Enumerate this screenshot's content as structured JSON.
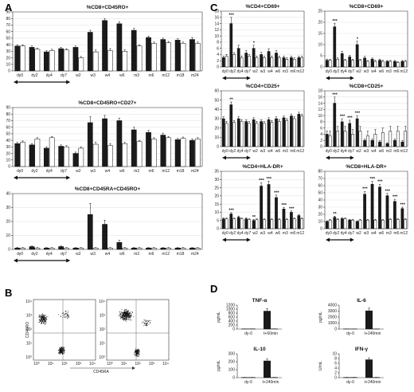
{
  "panel_labels": {
    "a": "A",
    "b": "B",
    "c": "C",
    "d": "D"
  },
  "panel_b": {
    "ylabel": "CD45RO",
    "xlabel": "CD45RA",
    "ticks": [
      "10⁰",
      "10¹",
      "10²",
      "10³",
      "10⁴"
    ]
  },
  "chart_data": [
    {
      "type": "bar",
      "panel": "A",
      "title": "%CD8+CD45RO+",
      "categories": [
        "dy0",
        "dy2",
        "dy4",
        "dy7",
        "w2",
        "w3",
        "w4",
        "w6",
        "m3",
        "m6",
        "m12",
        "m18",
        "m24"
      ],
      "ylim": [
        0,
        90
      ],
      "yticks": [
        0,
        10,
        20,
        30,
        40,
        50,
        60,
        70,
        80,
        90
      ],
      "series": [
        {
          "fill": "#1a1a1a",
          "values": [
            38,
            36,
            29,
            34,
            36,
            59,
            77,
            72,
            62,
            51,
            48,
            47,
            48
          ],
          "err": [
            2,
            2,
            2,
            2,
            2,
            3,
            3,
            3,
            3,
            2,
            2,
            2,
            3
          ]
        },
        {
          "fill": "#ffffff",
          "values": [
            38,
            33,
            31,
            32,
            20,
            29,
            31,
            30,
            38,
            42,
            43,
            42,
            42
          ],
          "err": [
            2,
            2,
            2,
            2,
            2,
            3,
            3,
            2,
            2,
            2,
            2,
            2,
            2
          ]
        }
      ],
      "stars": [],
      "period": [
        "dy0",
        "dy7"
      ]
    },
    {
      "type": "bar",
      "panel": "A",
      "title": "%CD8+CD45RO+CD27+",
      "categories": [
        "dy0",
        "dy2",
        "dy4",
        "dy7",
        "w2",
        "w3",
        "w4",
        "w6",
        "m3",
        "m6",
        "m12",
        "m18",
        "m24"
      ],
      "ylim": [
        0,
        90
      ],
      "yticks": [
        0,
        10,
        20,
        30,
        40,
        50,
        60,
        70,
        80,
        90
      ],
      "series": [
        {
          "fill": "#1a1a1a",
          "values": [
            35,
            33,
            28,
            31,
            20,
            67,
            73,
            70,
            56,
            52,
            48,
            41,
            40
          ],
          "err": [
            2,
            2,
            2,
            2,
            2,
            9,
            5,
            4,
            4,
            3,
            3,
            2,
            2
          ]
        },
        {
          "fill": "#ffffff",
          "values": [
            37,
            42,
            44,
            30,
            28,
            34,
            32,
            35,
            38,
            42,
            44,
            43,
            42
          ],
          "err": [
            2,
            2,
            2,
            2,
            2,
            3,
            3,
            2,
            2,
            2,
            2,
            2,
            2
          ]
        }
      ],
      "stars": [],
      "period": [
        "dy0",
        "dy7"
      ]
    },
    {
      "type": "bar",
      "panel": "A",
      "title": "%CD8+CD45RA+CD45RO+",
      "categories": [
        "dy0",
        "dy2",
        "dy4",
        "dy7",
        "w2",
        "w3",
        "w4",
        "w6",
        "m3",
        "m6",
        "m12",
        "m18",
        "m24"
      ],
      "ylim": [
        0,
        40
      ],
      "yticks": [
        0,
        10,
        20,
        30,
        40
      ],
      "series": [
        {
          "fill": "#1a1a1a",
          "values": [
            1,
            2,
            1,
            2,
            1,
            25,
            18,
            5,
            1,
            1,
            1,
            1,
            1
          ],
          "err": [
            0.3,
            0.4,
            0.3,
            0.4,
            0.3,
            8,
            3,
            1.5,
            0.3,
            0.3,
            0.3,
            0.3,
            0.3
          ]
        },
        {
          "fill": "#ffffff",
          "values": [
            1,
            1,
            1,
            1,
            1,
            1,
            1,
            1,
            1,
            1,
            1,
            1,
            1
          ],
          "err": [
            0.3,
            0.3,
            0.3,
            0.3,
            0.3,
            0.3,
            0.3,
            0.3,
            0.3,
            0.3,
            0.3,
            0.3,
            0.3
          ]
        }
      ],
      "stars": [],
      "period": [
        "dy0",
        "dy7"
      ]
    },
    {
      "type": "bar",
      "panel": "C",
      "title": "%CD4+CD69+",
      "categories": [
        "dy0",
        "dy2",
        "dy4",
        "dy7",
        "w2",
        "w3",
        "w4",
        "w6",
        "m3",
        "m6",
        "m12"
      ],
      "ylim": [
        0,
        18
      ],
      "yticks": [
        0,
        2,
        4,
        6,
        8,
        10,
        12,
        14,
        16,
        18
      ],
      "series": [
        {
          "fill": "#1a1a1a",
          "values": [
            3,
            14,
            6,
            4.5,
            6,
            4,
            5,
            4.5,
            3,
            3,
            3
          ],
          "err": [
            0.5,
            2,
            1,
            0.8,
            1,
            0.7,
            0.8,
            0.8,
            0.5,
            0.5,
            0.5
          ]
        },
        {
          "fill": "#ffffff",
          "values": [
            3.5,
            4,
            3,
            3.5,
            3,
            3,
            3,
            3,
            2.5,
            2.5,
            3
          ],
          "err": [
            0.5,
            0.6,
            0.5,
            0.5,
            0.5,
            0.5,
            0.5,
            0.5,
            0.4,
            0.4,
            0.5
          ]
        }
      ],
      "stars": [
        {
          "cat": "dy2",
          "label": "***"
        },
        {
          "cat": "w2",
          "label": "*"
        }
      ],
      "period": [
        "dy0",
        "dy7"
      ]
    },
    {
      "type": "bar",
      "panel": "C",
      "title": "%CD8+CD69+",
      "categories": [
        "dy0",
        "dy2",
        "dy4",
        "dy7",
        "w2",
        "w3",
        "w4",
        "w6",
        "m3",
        "m6",
        "m12"
      ],
      "ylim": [
        0,
        25
      ],
      "yticks": [
        0,
        5,
        10,
        15,
        20,
        25
      ],
      "series": [
        {
          "fill": "#1a1a1a",
          "values": [
            3,
            18,
            6,
            4.5,
            10,
            4,
            3.5,
            3,
            2.5,
            2.5,
            2.5
          ],
          "err": [
            0.5,
            1.5,
            1,
            0.7,
            1.5,
            0.7,
            0.5,
            0.5,
            0.4,
            0.4,
            0.4
          ]
        },
        {
          "fill": "#ffffff",
          "values": [
            3,
            3.5,
            3,
            3,
            3,
            2.5,
            2.5,
            2.5,
            2.5,
            2,
            2.5
          ],
          "err": [
            0.4,
            0.5,
            0.4,
            0.4,
            0.4,
            0.4,
            0.4,
            0.4,
            0.4,
            0.4,
            0.4
          ]
        }
      ],
      "stars": [
        {
          "cat": "dy2",
          "label": "***"
        },
        {
          "cat": "w2",
          "label": "*"
        }
      ],
      "period": [
        "dy0",
        "dy7"
      ]
    },
    {
      "type": "bar",
      "panel": "C",
      "title": "%CD4+CD25+",
      "categories": [
        "dy0",
        "dy2",
        "dy4",
        "dy7",
        "w2",
        "w3",
        "w4",
        "w6",
        "m3",
        "m6",
        "m12"
      ],
      "ylim": [
        0,
        60
      ],
      "yticks": [
        0,
        10,
        20,
        30,
        40,
        50,
        60
      ],
      "series": [
        {
          "fill": "#1a1a1a",
          "values": [
            30,
            45,
            30,
            27,
            29,
            27,
            29,
            30,
            31,
            33,
            35
          ],
          "err": [
            2,
            3,
            2,
            2,
            2,
            2,
            2,
            2,
            2,
            2,
            2
          ]
        },
        {
          "fill": "#ffffff",
          "values": [
            25,
            26,
            27,
            25,
            25,
            25,
            26,
            27,
            28,
            30,
            33
          ],
          "err": [
            2,
            2,
            2,
            2,
            2,
            2,
            2,
            2,
            2,
            2,
            2
          ]
        }
      ],
      "stars": [
        {
          "cat": "dy2",
          "label": "**"
        }
      ],
      "period": [
        "dy0",
        "dy7"
      ]
    },
    {
      "type": "bar",
      "panel": "C",
      "title": "%CD8+CD25+",
      "categories": [
        "dy0",
        "dy2",
        "dy4",
        "dy7",
        "w2",
        "w3",
        "w4",
        "w6",
        "m3",
        "m6",
        "m12"
      ],
      "ylim": [
        0,
        18
      ],
      "yticks": [
        0,
        2,
        4,
        6,
        8,
        10,
        12,
        14,
        16,
        18
      ],
      "series": [
        {
          "fill": "#1a1a1a",
          "values": [
            4,
            14,
            8,
            7.5,
            9,
            2,
            2,
            1.5,
            1,
            2,
            1.5
          ],
          "err": [
            1,
            2,
            1,
            1,
            1,
            0.5,
            0.5,
            0.4,
            0.3,
            0.5,
            0.4
          ]
        },
        {
          "fill": "#ffffff",
          "values": [
            3.5,
            5,
            5,
            4,
            5,
            3.5,
            4,
            4.5,
            5,
            5,
            5
          ],
          "err": [
            1.5,
            1.5,
            1.5,
            1.5,
            1.5,
            1.5,
            1.5,
            1.5,
            1.5,
            1.5,
            1.5
          ]
        }
      ],
      "stars": [
        {
          "cat": "dy2",
          "label": "***"
        },
        {
          "cat": "dy4",
          "label": "***"
        },
        {
          "cat": "dy7",
          "label": "***"
        },
        {
          "cat": "w2",
          "label": "***"
        }
      ],
      "period": [
        "dy0",
        "dy7"
      ]
    },
    {
      "type": "bar",
      "panel": "C",
      "title": "%CD4+HLA-DR+",
      "categories": [
        "dy0",
        "dy2",
        "dy4",
        "dy7",
        "w2",
        "w3",
        "w4",
        "w6",
        "m3",
        "m6",
        "m12"
      ],
      "ylim": [
        0,
        35
      ],
      "yticks": [
        0,
        5,
        10,
        15,
        20,
        25,
        30,
        35
      ],
      "series": [
        {
          "fill": "#1a1a1a",
          "values": [
            6,
            9,
            7,
            6,
            5,
            26,
            27,
            19,
            12,
            10,
            8
          ],
          "err": [
            0.6,
            0.8,
            0.7,
            0.6,
            0.6,
            2,
            2,
            1.5,
            1,
            0.8,
            0.7
          ]
        },
        {
          "fill": "#ffffff",
          "values": [
            6,
            6,
            6,
            5.5,
            5.5,
            5.5,
            5.5,
            5.5,
            5.5,
            6,
            6
          ],
          "err": [
            0.5,
            0.5,
            0.5,
            0.5,
            0.5,
            0.5,
            0.5,
            0.5,
            0.5,
            0.5,
            0.5
          ]
        }
      ],
      "stars": [
        {
          "cat": "dy2",
          "label": "***"
        },
        {
          "cat": "w2",
          "label": "**"
        },
        {
          "cat": "w3",
          "label": "***"
        },
        {
          "cat": "w4",
          "label": "***"
        },
        {
          "cat": "w6",
          "label": "***"
        },
        {
          "cat": "m3",
          "label": "***"
        },
        {
          "cat": "m6",
          "label": "***"
        }
      ],
      "period": [
        "dy0",
        "dy7"
      ]
    },
    {
      "type": "bar",
      "panel": "C",
      "title": "%CD8+HLA-DR+",
      "categories": [
        "dy0",
        "dy2",
        "dy4",
        "dy7",
        "w2",
        "w3",
        "w4",
        "w6",
        "m3",
        "m6",
        "m12"
      ],
      "ylim": [
        0,
        80
      ],
      "yticks": [
        0,
        10,
        20,
        30,
        40,
        50,
        60,
        70,
        80
      ],
      "series": [
        {
          "fill": "#1a1a1a",
          "values": [
            10,
            16,
            14,
            12,
            10,
            48,
            62,
            58,
            46,
            38,
            28
          ],
          "err": [
            1,
            1.5,
            1.5,
            1,
            1,
            4,
            4,
            4,
            3,
            3,
            2
          ]
        },
        {
          "fill": "#ffffff",
          "values": [
            12,
            13,
            14,
            12,
            12,
            12,
            12,
            12,
            13,
            13,
            13
          ],
          "err": [
            1,
            1,
            1,
            1,
            1,
            1,
            1,
            1,
            1,
            1,
            1
          ]
        }
      ],
      "stars": [
        {
          "cat": "dy2",
          "label": "**"
        },
        {
          "cat": "w3",
          "label": "***"
        },
        {
          "cat": "w4",
          "label": "***"
        },
        {
          "cat": "w6",
          "label": "***"
        },
        {
          "cat": "m3",
          "label": "***"
        },
        {
          "cat": "m6",
          "label": "***"
        },
        {
          "cat": "m12",
          "label": "***"
        }
      ],
      "period": [
        "dy0",
        "dy7"
      ]
    },
    {
      "type": "bar",
      "panel": "D",
      "title": "TNF-α",
      "ylabel": "pg/mL",
      "categories": [
        "dy-0",
        "t+60min"
      ],
      "ylim": [
        0,
        1200
      ],
      "yticks": [
        0,
        200,
        400,
        600,
        800,
        1000,
        1200
      ],
      "series": [
        {
          "fill": "#1a1a1a",
          "values": [
            10,
            900
          ],
          "err": [
            3,
            130
          ]
        },
        {
          "fill": "#ffffff",
          "values": [
            10,
            10
          ],
          "err": [
            3,
            3
          ]
        }
      ],
      "stars": [],
      "period": null
    },
    {
      "type": "bar",
      "panel": "D",
      "title": "IL-6",
      "ylabel": "pg/mL",
      "categories": [
        "dy-0",
        "t+240min"
      ],
      "ylim": [
        0,
        4000
      ],
      "yticks": [
        0,
        1000,
        2000,
        3000,
        4000
      ],
      "series": [
        {
          "fill": "#1a1a1a",
          "values": [
            20,
            3050
          ],
          "err": [
            5,
            450
          ]
        },
        {
          "fill": "#ffffff",
          "values": [
            20,
            20
          ],
          "err": [
            5,
            5
          ]
        }
      ],
      "stars": [],
      "period": null
    },
    {
      "type": "bar",
      "panel": "D",
      "title": "IL-10",
      "ylabel": "pg/mL",
      "categories": [
        "dy-0",
        "t+240min"
      ],
      "ylim": [
        0,
        300
      ],
      "yticks": [
        0,
        100,
        200,
        300
      ],
      "series": [
        {
          "fill": "#1a1a1a",
          "values": [
            3,
            210
          ],
          "err": [
            1,
            25
          ]
        },
        {
          "fill": "#ffffff",
          "values": [
            3,
            3
          ],
          "err": [
            1,
            1
          ]
        }
      ],
      "stars": [],
      "period": null
    },
    {
      "type": "bar",
      "panel": "D",
      "title": "IFN-γ",
      "ylabel": "U/mL",
      "categories": [
        "dy-0",
        "t+240min"
      ],
      "ylim": [
        0,
        10
      ],
      "yticks": [
        0,
        2,
        4,
        6,
        8,
        10
      ],
      "series": [
        {
          "fill": "#1a1a1a",
          "values": [
            0.1,
            7.5
          ],
          "err": [
            0.05,
            0.8
          ]
        },
        {
          "fill": "#ffffff",
          "values": [
            0.1,
            0.1
          ],
          "err": [
            0.05,
            0.05
          ]
        }
      ],
      "stars": [],
      "period": null
    }
  ]
}
